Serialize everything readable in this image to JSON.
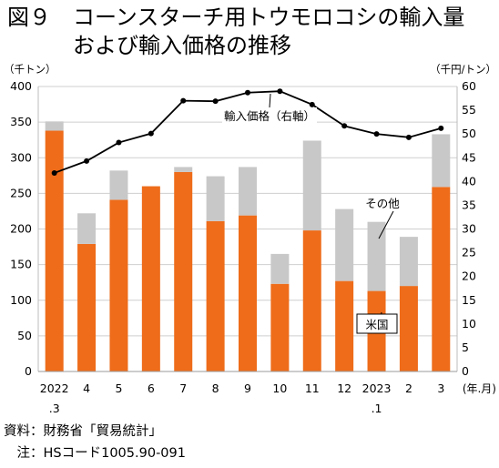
{
  "title": {
    "line1": "図９　コーンスターチ用トウモロコシの輸入量",
    "line2": "　　　および輸入価格の推移"
  },
  "notes": {
    "source": "資料：財務省「貿易統計」",
    "note": "　注：HSコード1005.90-091"
  },
  "colors": {
    "us": "#ee6c1a",
    "other": "#c8c8c8",
    "line": "#000000",
    "grid": "#cfcfcf"
  },
  "chart_data": {
    "type": "bar",
    "stacked": true,
    "grid": true,
    "categories": [
      {
        "line1": "2022",
        "line2": ".3"
      },
      {
        "line1": "4",
        "line2": ""
      },
      {
        "line1": "5",
        "line2": ""
      },
      {
        "line1": "6",
        "line2": ""
      },
      {
        "line1": "7",
        "line2": ""
      },
      {
        "line1": "8",
        "line2": ""
      },
      {
        "line1": "9",
        "line2": ""
      },
      {
        "line1": "10",
        "line2": ""
      },
      {
        "line1": "11",
        "line2": ""
      },
      {
        "line1": "12",
        "line2": ""
      },
      {
        "line1": "2023",
        "line2": ".1"
      },
      {
        "line1": "2",
        "line2": ""
      },
      {
        "line1": "3",
        "line2": ""
      }
    ],
    "xlabel": "(年.月)",
    "ylabel_left": "（千トン）",
    "ylabel_right": "（千円/トン）",
    "ylim_left": [
      0,
      400
    ],
    "yticks_left": [
      0,
      50,
      100,
      150,
      200,
      250,
      300,
      350,
      400
    ],
    "ylim_right": [
      0,
      60
    ],
    "yticks_right": [
      0,
      5,
      10,
      15,
      20,
      25,
      30,
      35,
      40,
      45,
      50,
      55,
      60
    ],
    "series": [
      {
        "name": "米国",
        "axis": "left",
        "kind": "bar",
        "values": [
          338,
          179,
          241,
          260,
          280,
          211,
          219,
          123,
          198,
          127,
          113,
          120,
          259
        ]
      },
      {
        "name": "その他",
        "axis": "left",
        "kind": "bar",
        "values": [
          13,
          43,
          41,
          0,
          7,
          63,
          68,
          42,
          126,
          101,
          97,
          69,
          74
        ]
      },
      {
        "name": "輸入価格（右軸）",
        "axis": "right",
        "kind": "line",
        "values": [
          41.8,
          44.3,
          48.2,
          50.1,
          57.0,
          56.9,
          58.7,
          59.0,
          56.2,
          51.7,
          50.0,
          49.3,
          51.2
        ]
      }
    ]
  }
}
